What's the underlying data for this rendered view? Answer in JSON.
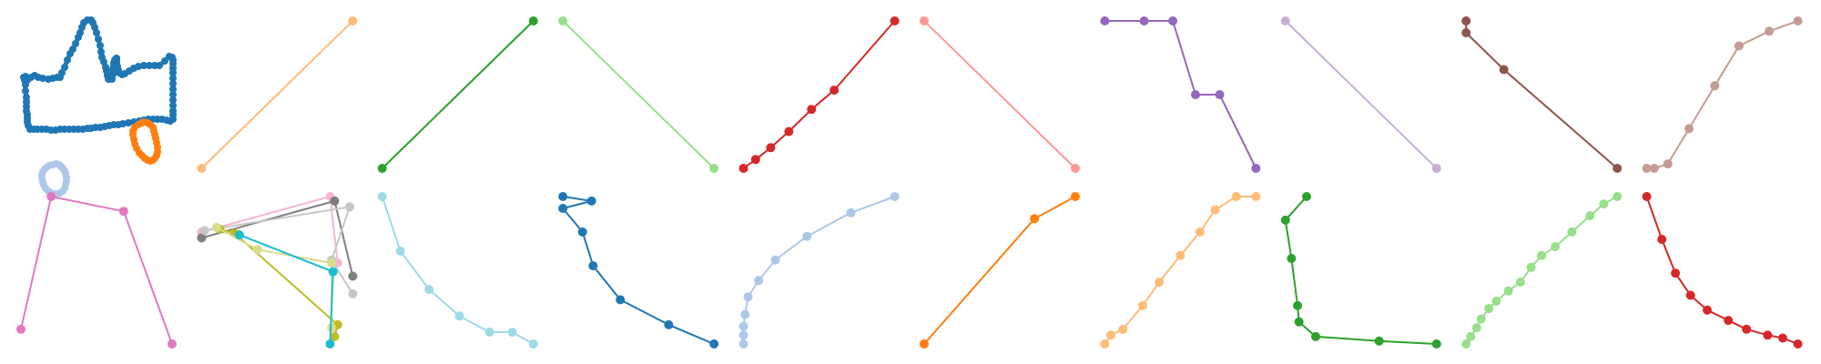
{
  "chart_data": {
    "type": "line",
    "layout": {
      "rows": 2,
      "cols": 10
    },
    "axes_visible": false,
    "grid": false,
    "legend": "none",
    "panels": [
      {
        "series": [
          {
            "color": "#1f77b4",
            "marker_size": "small",
            "x": [
              28,
              26,
              27,
              30,
              34,
              38,
              42,
              47,
              53,
              58,
              63,
              66,
              68,
              71,
              74,
              77,
              80,
              83,
              86,
              88,
              90,
              92,
              96,
              100,
              102,
              104,
              106,
              108,
              110,
              111,
              112,
              114,
              116,
              117,
              118,
              119,
              120,
              123,
              124,
              124,
              125,
              125,
              126,
              127,
              128,
              128,
              128,
              129,
              130,
              131,
              134,
              137,
              142,
              147,
              152,
              158,
              164,
              170,
              175,
              181,
              186,
              189,
              190,
              190,
              190,
              190,
              190,
              190,
              190,
              190,
              190,
              190,
              190,
              190,
              190,
              187,
              183,
              178,
              173,
              168,
              163,
              158,
              153,
              147,
              141,
              135,
              130,
              125,
              120,
              115,
              110,
              105,
              100,
              96,
              91,
              86,
              81,
              76,
              71,
              66,
              61,
              56,
              51,
              46,
              41,
              37,
              33,
              31,
              30,
              30,
              30,
              29,
              29,
              29,
              29,
              28,
              28
            ],
            "y": [
              84,
              85,
              88,
              88,
              85,
              83,
              85,
              86,
              87,
              86,
              85,
              85,
              80,
              74,
              66,
              59,
              54,
              48,
              41,
              36,
              30,
              25,
              22,
              22,
              25,
              30,
              36,
              43,
              50,
              57,
              63,
              68,
              74,
              78,
              83,
              87,
              87,
              87,
              82,
              76,
              72,
              69,
              66,
              65,
              64,
              66,
              69,
              73,
              77,
              80,
              82,
              81,
              78,
              75,
              73,
              72,
              72,
              72,
              72,
              67,
              62,
              63,
              66,
              70,
              75,
              80,
              86,
              92,
              98,
              104,
              110,
              116,
              122,
              126,
              131,
              133,
              132,
              131,
              131,
              131,
              131,
              132,
              133,
              134,
              135,
              136,
              137,
              137,
              138,
              139,
              140,
              140,
              141,
              141,
              142,
              142,
              142,
              142,
              142,
              142,
              143,
              143,
              142,
              142,
              142,
              142,
              142,
              138,
              134,
              130,
              126,
              122,
              117,
              112,
              107,
              100,
              93
            ]
          },
          {
            "color": "#aec7e8",
            "marker_size": "small",
            "x": [
              62,
              58,
              54,
              51,
              49,
              47,
              46,
              46,
              47,
              48,
              50,
              53,
              56,
              60,
              63,
              66,
              69,
              71,
              72,
              73,
              73,
              72,
              71,
              69,
              67,
              65,
              62
            ],
            "y": [
              180,
              181,
              182,
              184,
              186,
              189,
              192,
              196,
              200,
              203,
              207,
              210,
              212,
              213,
              213,
              212,
              210,
              207,
              203,
              199,
              195,
              191,
              188,
              185,
              183,
              181,
              180
            ]
          },
          {
            "color": "#ff7f0e",
            "marker_size": "small",
            "x": [
              156,
              152,
              148,
              146,
              146,
              147,
              148,
              150,
              153,
              156,
              159,
              162,
              165,
              168,
              170,
              172,
              173,
              173,
              172,
              171,
              170,
              169,
              168,
              165,
              162,
              158,
              156
            ],
            "y": [
              135,
              137,
              140,
              144,
              148,
              153,
              158,
              163,
              168,
              171,
              174,
              176,
              177,
              176,
              174,
              171,
              167,
              162,
              157,
              152,
              148,
              144,
              140,
              137,
              135,
              134,
              135
            ]
          }
        ]
      },
      {
        "series": [
          {
            "color": "#ffbb78",
            "x": [
              0,
              1
            ],
            "y": [
              0,
              1
            ]
          }
        ]
      },
      {
        "series": [
          {
            "color": "#2ca02c",
            "x": [
              0,
              1
            ],
            "y": [
              0,
              1
            ]
          }
        ]
      },
      {
        "series": [
          {
            "color": "#98df8a",
            "x": [
              0,
              1
            ],
            "y": [
              1,
              0
            ]
          }
        ]
      },
      {
        "series": [
          {
            "color": "#d62728",
            "x": [
              0,
              0.08,
              0.18,
              0.3,
              0.45,
              0.6,
              1.0
            ],
            "y": [
              0,
              0.06,
              0.14,
              0.25,
              0.4,
              0.53,
              1.0
            ]
          }
        ]
      },
      {
        "series": [
          {
            "color": "#ff9896",
            "x": [
              0,
              1
            ],
            "y": [
              1,
              0
            ]
          }
        ]
      },
      {
        "series": [
          {
            "color": "#9467bd",
            "x": [
              0,
              0.26,
              0.45,
              0.6,
              0.76,
              1.0
            ],
            "y": [
              1,
              1,
              1,
              0.5,
              0.5,
              0
            ]
          }
        ]
      },
      {
        "series": [
          {
            "color": "#c5b0d5",
            "x": [
              0,
              1
            ],
            "y": [
              1,
              0
            ]
          }
        ]
      },
      {
        "series": [
          {
            "color": "#8c564b",
            "x": [
              0,
              0,
              0.25,
              1.0
            ],
            "y": [
              1,
              0.92,
              0.67,
              0
            ]
          }
        ]
      },
      {
        "series": [
          {
            "color": "#c49c94",
            "x": [
              0,
              0.05,
              0.14,
              0.28,
              0.45,
              0.61,
              0.81,
              1.0
            ],
            "y": [
              0,
              0,
              0.03,
              0.27,
              0.56,
              0.83,
              0.93,
              1.0
            ]
          }
        ]
      },
      {
        "series": [
          {
            "color": "#e377c2",
            "x": [
              0,
              0.2,
              0.68,
              1.0
            ],
            "y": [
              0.1,
              1.0,
              0.9,
              0
            ]
          }
        ]
      },
      {
        "series": [
          {
            "color": "#f7b6d2",
            "x": [
              0,
              0.85,
              0.9
            ],
            "y": [
              0.76,
              1.0,
              0.55
            ]
          },
          {
            "color": "#7f7f7f",
            "x": [
              0,
              0.88,
              1.0
            ],
            "y": [
              0.72,
              0.97,
              0.46
            ]
          },
          {
            "color": "#c7c7c7",
            "x": [
              0.02,
              0.98,
              0.86,
              1.0
            ],
            "y": [
              0.77,
              0.93,
              0.57,
              0.34
            ]
          },
          {
            "color": "#bcbd22",
            "x": [
              0.12,
              0.22,
              0.9,
              0.88
            ],
            "y": [
              0.78,
              0.75,
              0.13,
              0.05
            ]
          },
          {
            "color": "#dbdb8d",
            "x": [
              0.1,
              0.37,
              0.86,
              0.86
            ],
            "y": [
              0.79,
              0.64,
              0.55,
              0.11
            ]
          },
          {
            "color": "#17becf",
            "x": [
              0.25,
              0.87,
              0.85
            ],
            "y": [
              0.74,
              0.49,
              0.0
            ]
          }
        ]
      },
      {
        "series": [
          {
            "color": "#9edae5",
            "x": [
              0,
              0.12,
              0.31,
              0.51,
              0.71,
              0.86,
              1.0
            ],
            "y": [
              1,
              0.63,
              0.37,
              0.19,
              0.08,
              0.08,
              0
            ]
          }
        ]
      },
      {
        "series": [
          {
            "color": "#1f77b4",
            "x": [
              0,
              0.19,
              0.0,
              0.13,
              0.2,
              0.38,
              0.7,
              1.0
            ],
            "y": [
              1,
              0.97,
              0.92,
              0.76,
              0.53,
              0.3,
              0.13,
              0
            ]
          }
        ]
      },
      {
        "series": [
          {
            "color": "#aec7e8",
            "x": [
              0,
              0.0,
              0.0,
              0.01,
              0.03,
              0.1,
              0.21,
              0.42,
              0.71,
              1.0
            ],
            "y": [
              0,
              0.06,
              0.12,
              0.2,
              0.32,
              0.43,
              0.57,
              0.73,
              0.89,
              1.0
            ]
          }
        ]
      },
      {
        "series": [
          {
            "color": "#ff7f0e",
            "x": [
              0,
              0.73,
              1.0
            ],
            "y": [
              0,
              0.85,
              1.0
            ]
          }
        ]
      },
      {
        "series": [
          {
            "color": "#ffbb78",
            "x": [
              0,
              0.04,
              0.12,
              0.25,
              0.36,
              0.5,
              0.63,
              0.73,
              0.87,
              1.0
            ],
            "y": [
              0,
              0.06,
              0.1,
              0.26,
              0.42,
              0.6,
              0.76,
              0.91,
              1.0,
              1.0
            ]
          }
        ]
      },
      {
        "series": [
          {
            "color": "#2ca02c",
            "x": [
              0.14,
              0.0,
              0.04,
              0.08,
              0.09,
              0.2,
              0.62,
              1.0
            ],
            "y": [
              1,
              0.84,
              0.58,
              0.26,
              0.15,
              0.05,
              0.02,
              0
            ]
          }
        ]
      },
      {
        "series": [
          {
            "color": "#98df8a",
            "x": [
              0,
              0.03,
              0.07,
              0.1,
              0.15,
              0.2,
              0.28,
              0.36,
              0.43,
              0.5,
              0.59,
              0.7,
              0.82,
              0.91,
              1.0
            ],
            "y": [
              0,
              0.05,
              0.11,
              0.17,
              0.24,
              0.29,
              0.36,
              0.42,
              0.52,
              0.6,
              0.66,
              0.76,
              0.87,
              0.95,
              1.0
            ]
          }
        ]
      },
      {
        "series": [
          {
            "color": "#d62728",
            "x": [
              0,
              0.1,
              0.19,
              0.29,
              0.4,
              0.54,
              0.66,
              0.8,
              0.9,
              1.0
            ],
            "y": [
              1,
              0.71,
              0.48,
              0.33,
              0.23,
              0.16,
              0.1,
              0.06,
              0.04,
              0
            ]
          }
        ]
      }
    ]
  }
}
